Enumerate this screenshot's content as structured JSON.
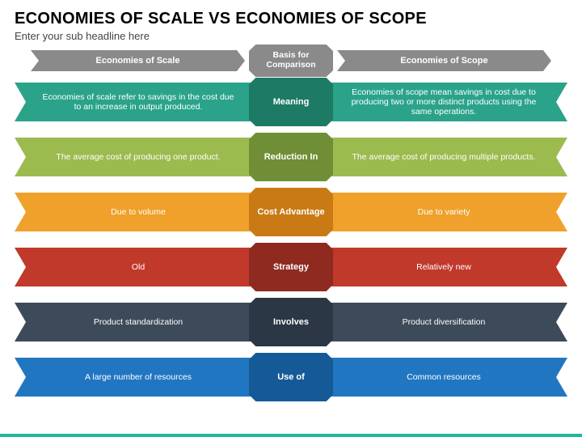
{
  "title": "ECONOMIES OF SCALE VS ECONOMIES OF SCOPE",
  "subtitle": "Enter your sub headline here",
  "headers": {
    "left": "Economies of Scale",
    "center": "Basis for Comparison",
    "right": "Economies of Scope"
  },
  "rows": [
    {
      "left": "Economies of scale refer to savings in the cost due to an increase in output produced.",
      "center": "Meaning",
      "right": "Economies of scope mean savings in cost due to producing two or more distinct products using the same operations.",
      "side_color": "#2aa38a",
      "center_color": "#1c7a65"
    },
    {
      "left": "The average cost of producing one product.",
      "center": "Reduction In",
      "right": "The average cost of producing multiple products.",
      "side_color": "#9cbb4f",
      "center_color": "#6f8e36"
    },
    {
      "left": "Due to volume",
      "center": "Cost Advantage",
      "right": "Due to variety",
      "side_color": "#efa12b",
      "center_color": "#c97a15"
    },
    {
      "left": "Old",
      "center": "Strategy",
      "right": "Relatively new",
      "side_color": "#c0392b",
      "center_color": "#8e2a20"
    },
    {
      "left": "Product standardization",
      "center": "Involves",
      "right": "Product diversification",
      "side_color": "#3d4a5a",
      "center_color": "#2b3744"
    },
    {
      "left": "A large number of resources",
      "center": "Use of",
      "right": "Common resources",
      "side_color": "#2176c1",
      "center_color": "#155a97"
    }
  ]
}
